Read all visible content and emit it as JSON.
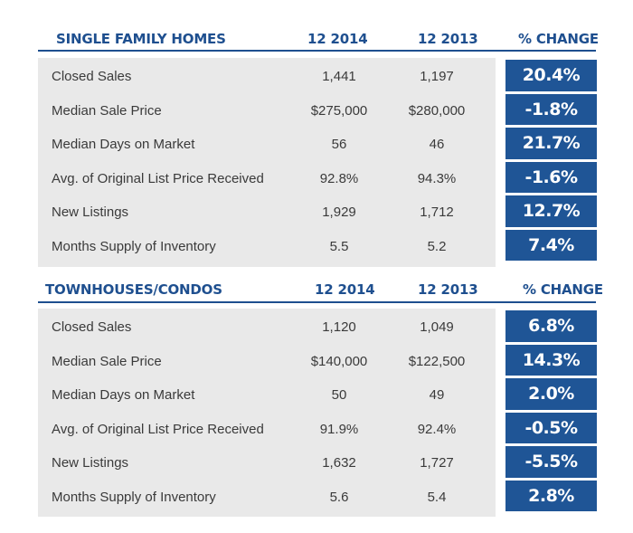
{
  "sections": [
    {
      "title": "SINGLE FAMILY HOMES",
      "col1": "12 2014",
      "col2": "12 2013",
      "col3": "% CHANGE",
      "rows": [
        {
          "label": "Closed Sales",
          "v1": "1,441",
          "v2": "1,197",
          "change": "20.4%"
        },
        {
          "label": "Median Sale Price",
          "v1": "$275,000",
          "v2": "$280,000",
          "change": "-1.8%"
        },
        {
          "label": "Median Days on Market",
          "v1": "56",
          "v2": "46",
          "change": "21.7%"
        },
        {
          "label": "Avg. of Original List Price Received",
          "v1": "92.8%",
          "v2": "94.3%",
          "change": "-1.6%"
        },
        {
          "label": "New Listings",
          "v1": "1,929",
          "v2": "1,712",
          "change": "12.7%"
        },
        {
          "label": "Months Supply of Inventory",
          "v1": "5.5",
          "v2": "5.2",
          "change": "7.4%"
        }
      ]
    },
    {
      "title": "TOWNHOUSES/CONDOS",
      "col1": "12 2014",
      "col2": "12 2013",
      "col3": "% CHANGE",
      "rows": [
        {
          "label": "Closed Sales",
          "v1": "1,120",
          "v2": "1,049",
          "change": "6.8%"
        },
        {
          "label": "Median Sale Price",
          "v1": "$140,000",
          "v2": "$122,500",
          "change": "14.3%"
        },
        {
          "label": "Median Days on Market",
          "v1": "50",
          "v2": "49",
          "change": "2.0%"
        },
        {
          "label": "Avg. of Original List Price Received",
          "v1": "91.9%",
          "v2": "92.4%",
          "change": "-0.5%"
        },
        {
          "label": "New Listings",
          "v1": "1,632",
          "v2": "1,727",
          "change": "-5.5%"
        },
        {
          "label": "Months Supply of Inventory",
          "v1": "5.6",
          "v2": "5.4",
          "change": "2.8%"
        }
      ]
    }
  ],
  "colors": {
    "header": "#1e4f8f",
    "panel": "#e9e9e9",
    "change_box": "#1f5596"
  }
}
